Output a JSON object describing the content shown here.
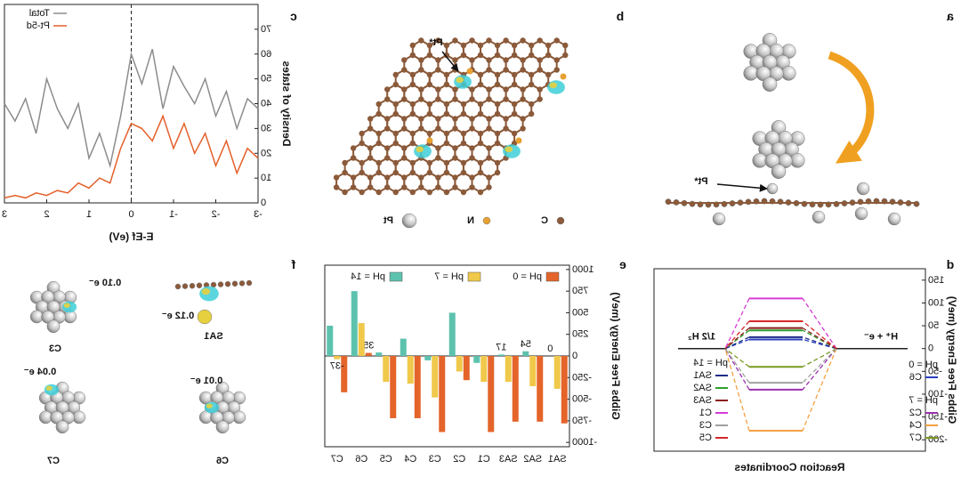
{
  "figure": {
    "panel_labels": [
      "a",
      "b",
      "c",
      "d",
      "e",
      "f"
    ],
    "panel_a": {
      "pointer": "Pt*"
    },
    "panel_b": {
      "pointer": "Pt*",
      "legend": [
        "Pt",
        "N",
        "C"
      ]
    },
    "panel_f": {
      "structures": [
        {
          "name": "SA1",
          "charge": "0.12 e⁻"
        },
        {
          "name": "C3",
          "charge": "0.10 e⁻"
        },
        {
          "name": "C6",
          "charge": "0.01 e⁻"
        },
        {
          "name": "C7",
          "charge": "0.04 e⁻"
        }
      ]
    }
  },
  "chart_data": [
    {
      "type": "line",
      "xlabel": "E-Ef (eV)",
      "ylabel": "Density of states",
      "x": [
        -3,
        -2.75,
        -2.5,
        -2.25,
        -2,
        -1.75,
        -1.5,
        -1.25,
        -1,
        -0.75,
        -0.5,
        -0.25,
        0,
        0.25,
        0.5,
        0.75,
        1,
        1.25,
        1.5,
        1.75,
        2,
        2.25,
        2.5,
        2.75,
        3
      ],
      "series": [
        {
          "name": "Total",
          "color": "#8c8c8c",
          "values": [
            38,
            42,
            30,
            45,
            35,
            50,
            40,
            47,
            55,
            38,
            62,
            48,
            60,
            35,
            15,
            28,
            18,
            40,
            30,
            38,
            50,
            28,
            42,
            33,
            40
          ]
        },
        {
          "name": "Pt-5d",
          "color": "#e4602a",
          "values": [
            18,
            22,
            12,
            25,
            15,
            28,
            20,
            32,
            22,
            35,
            25,
            30,
            32,
            22,
            8,
            10,
            6,
            8,
            4,
            5,
            3,
            4,
            2,
            3,
            2
          ]
        }
      ],
      "xlim": [
        -3,
        3
      ],
      "xticks": [
        -3,
        -2,
        -1,
        0,
        1,
        2,
        3
      ],
      "ylim": [
        0,
        80
      ],
      "yticks": [
        0,
        10,
        20,
        30,
        40,
        50,
        60,
        70
      ],
      "vline": 0,
      "legend": "upper right"
    },
    {
      "type": "bar",
      "ylabel": "Gibbs Free Energy (meV)",
      "categories": [
        "SA1",
        "SA2",
        "SA3",
        "C1",
        "C2",
        "C3",
        "C4",
        "C5",
        "C6",
        "C7"
      ],
      "series": [
        {
          "name": "pH = 0",
          "color": "#e4642a",
          "values": [
            -780,
            -760,
            -760,
            -880,
            -280,
            -880,
            -720,
            -720,
            35,
            -420
          ],
          "value_labels": [
            null,
            null,
            null,
            null,
            null,
            null,
            null,
            null,
            "35",
            null
          ]
        },
        {
          "name": "pH = 7",
          "color": "#f0c84a",
          "values": [
            -380,
            -350,
            -300,
            -300,
            -180,
            -480,
            -320,
            -300,
            380,
            -37
          ],
          "value_labels": [
            null,
            null,
            null,
            null,
            null,
            null,
            null,
            null,
            null,
            "-37"
          ]
        },
        {
          "name": "pH = 14",
          "color": "#5cc2ae",
          "values": [
            0,
            54,
            17,
            -80,
            500,
            -50,
            200,
            40,
            750,
            350
          ],
          "value_labels": [
            "0",
            "54",
            "17",
            null,
            null,
            null,
            null,
            null,
            null,
            null
          ]
        }
      ],
      "ylim": [
        -1050,
        1050
      ],
      "yticks": [
        -1000,
        -750,
        -500,
        -250,
        0,
        250,
        500,
        750,
        1000
      ],
      "legend": "upper left"
    },
    {
      "type": "energy",
      "xlabel": "Reaction Coordinates",
      "ylabel": "Gibbs Free Energy (meV)",
      "categories": [
        "H⁺ + e⁻",
        null,
        "1/2 H₂"
      ],
      "groups": [
        {
          "name": "pH = 0",
          "series": [
            {
              "name": "C6",
              "color": "#2a3fbf",
              "values": [
                0,
                20,
                0
              ]
            }
          ]
        },
        {
          "name": "pH = 7",
          "series": [
            {
              "name": "C2",
              "color": "#9b30b0",
              "values": [
                0,
                -90,
                0
              ]
            },
            {
              "name": "C4",
              "color": "#f5a040",
              "values": [
                0,
                -180,
                0
              ]
            },
            {
              "name": "C7",
              "color": "#7a9a20",
              "values": [
                0,
                -40,
                0
              ]
            }
          ]
        },
        {
          "name": "pH = 14",
          "series": [
            {
              "name": "SA1",
              "color": "#1f2d8a",
              "values": [
                0,
                25,
                0
              ]
            },
            {
              "name": "SA2",
              "color": "#2ca02c",
              "values": [
                0,
                40,
                0
              ]
            },
            {
              "name": "SA3",
              "color": "#8b1a1a",
              "values": [
                0,
                45,
                0
              ]
            },
            {
              "name": "C1",
              "color": "#d63cd6",
              "values": [
                0,
                110,
                0
              ]
            },
            {
              "name": "C3",
              "color": "#a0a0a0",
              "values": [
                0,
                -75,
                0
              ]
            },
            {
              "name": "C5",
              "color": "#d62728",
              "values": [
                0,
                60,
                0
              ]
            }
          ]
        }
      ],
      "ylim": [
        -225,
        175
      ],
      "yticks": [
        -200,
        -150,
        -100,
        -50,
        0,
        50,
        100,
        150
      ]
    }
  ]
}
